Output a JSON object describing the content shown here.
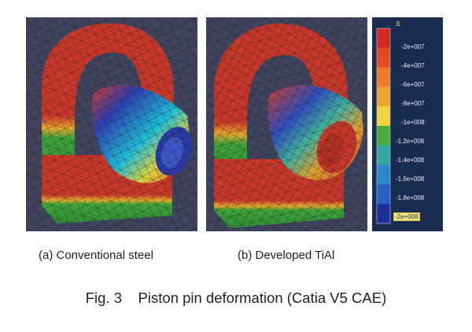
{
  "panels": [
    {
      "caption": "(a) Conventional steel"
    },
    {
      "caption": "(b) Developed TiAl"
    }
  ],
  "legend": {
    "marker": "⧖",
    "labels": [
      "-2e+007",
      "-4e+007",
      "-6e+007",
      "-8e+007",
      "-1e+008",
      "-1.2e+008",
      "-1.4e+008",
      "-1.6e+008",
      "-1.8e+008",
      "-2e+008"
    ],
    "colors": [
      "#d22a1e",
      "#e24a22",
      "#ec7a2a",
      "#f0a430",
      "#f0d23a",
      "#4caa3a",
      "#2ea8a0",
      "#2c86c8",
      "#2a5ec2",
      "#1d2f9a"
    ]
  },
  "figure_caption": "Fig. 3    Piston pin deformation (Catia V5 CAE)"
}
